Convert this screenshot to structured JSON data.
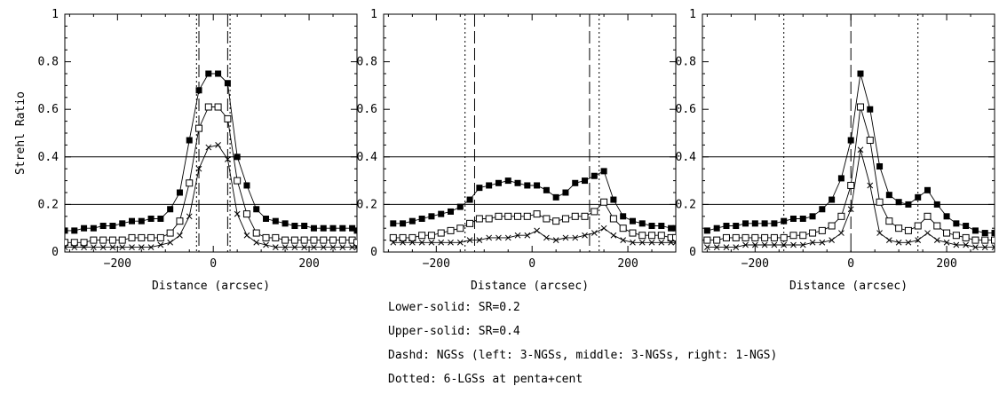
{
  "chart_data": [
    {
      "type": "line",
      "title": "",
      "xlabel": "Distance (arcsec)",
      "ylabel": "Strehl Ratio",
      "xlim": [
        -310,
        300
      ],
      "ylim": [
        0,
        1
      ],
      "xticks": [
        -200,
        0,
        200
      ],
      "yticks": [
        0,
        0.2,
        0.4,
        0.6,
        0.8,
        1
      ],
      "ytick_labels": [
        "0",
        "0.2",
        "0.4",
        "0.6",
        "0.8",
        "1"
      ],
      "hlines": [
        0.2,
        0.4
      ],
      "dashed_vlines": [
        -30,
        30
      ],
      "dotted_vlines": [
        -35,
        35
      ],
      "x": [
        -310,
        -290,
        -270,
        -250,
        -230,
        -210,
        -190,
        -170,
        -150,
        -130,
        -110,
        -90,
        -70,
        -50,
        -30,
        -10,
        10,
        30,
        50,
        70,
        90,
        110,
        130,
        150,
        170,
        190,
        210,
        230,
        250,
        270,
        290,
        300
      ],
      "series": [
        {
          "name": "filled squares",
          "marker": "filled-square",
          "values": [
            0.09,
            0.09,
            0.1,
            0.1,
            0.11,
            0.11,
            0.12,
            0.13,
            0.13,
            0.14,
            0.14,
            0.18,
            0.25,
            0.47,
            0.68,
            0.75,
            0.75,
            0.71,
            0.4,
            0.28,
            0.18,
            0.14,
            0.13,
            0.12,
            0.11,
            0.11,
            0.1,
            0.1,
            0.1,
            0.1,
            0.1,
            0.09
          ]
        },
        {
          "name": "open squares",
          "marker": "open-square",
          "values": [
            0.04,
            0.04,
            0.04,
            0.05,
            0.05,
            0.05,
            0.05,
            0.06,
            0.06,
            0.06,
            0.06,
            0.08,
            0.13,
            0.29,
            0.52,
            0.61,
            0.61,
            0.56,
            0.3,
            0.16,
            0.08,
            0.06,
            0.06,
            0.05,
            0.05,
            0.05,
            0.05,
            0.05,
            0.05,
            0.05,
            0.05,
            0.04
          ]
        },
        {
          "name": "crosses",
          "marker": "cross",
          "values": [
            0.02,
            0.02,
            0.02,
            0.02,
            0.02,
            0.02,
            0.02,
            0.02,
            0.02,
            0.02,
            0.03,
            0.04,
            0.07,
            0.15,
            0.35,
            0.44,
            0.45,
            0.39,
            0.16,
            0.07,
            0.04,
            0.03,
            0.02,
            0.02,
            0.02,
            0.02,
            0.02,
            0.02,
            0.02,
            0.02,
            0.02,
            0.02
          ]
        }
      ]
    },
    {
      "type": "line",
      "title": "",
      "xlabel": "Distance (arcsec)",
      "ylabel": "",
      "xlim": [
        -310,
        300
      ],
      "ylim": [
        0,
        1
      ],
      "xticks": [
        -200,
        0,
        200
      ],
      "yticks": [
        0,
        0.2,
        0.4,
        0.6,
        0.8,
        1
      ],
      "ytick_labels": [
        "0",
        "0.2",
        "0.4",
        "0.6",
        "0.8",
        "1"
      ],
      "hlines": [
        0.2,
        0.4
      ],
      "dashed_vlines": [
        -120,
        120
      ],
      "dotted_vlines": [
        -140,
        140
      ],
      "x": [
        -290,
        -270,
        -250,
        -230,
        -210,
        -190,
        -170,
        -150,
        -130,
        -110,
        -90,
        -70,
        -50,
        -30,
        -10,
        10,
        30,
        50,
        70,
        90,
        110,
        130,
        150,
        170,
        190,
        210,
        230,
        250,
        270,
        290,
        300
      ],
      "series": [
        {
          "name": "filled squares",
          "marker": "filled-square",
          "values": [
            0.12,
            0.12,
            0.13,
            0.14,
            0.15,
            0.16,
            0.17,
            0.19,
            0.22,
            0.27,
            0.28,
            0.29,
            0.3,
            0.29,
            0.28,
            0.28,
            0.26,
            0.23,
            0.25,
            0.29,
            0.3,
            0.32,
            0.34,
            0.22,
            0.15,
            0.13,
            0.12,
            0.11,
            0.11,
            0.1,
            0.1
          ]
        },
        {
          "name": "open squares",
          "marker": "open-square",
          "values": [
            0.06,
            0.06,
            0.06,
            0.07,
            0.07,
            0.08,
            0.09,
            0.1,
            0.12,
            0.14,
            0.14,
            0.15,
            0.15,
            0.15,
            0.15,
            0.16,
            0.14,
            0.13,
            0.14,
            0.15,
            0.15,
            0.17,
            0.21,
            0.14,
            0.1,
            0.08,
            0.07,
            0.07,
            0.07,
            0.06,
            0.06
          ]
        },
        {
          "name": "crosses",
          "marker": "cross",
          "values": [
            0.04,
            0.04,
            0.04,
            0.04,
            0.04,
            0.04,
            0.04,
            0.04,
            0.05,
            0.05,
            0.06,
            0.06,
            0.06,
            0.07,
            0.07,
            0.09,
            0.06,
            0.05,
            0.06,
            0.06,
            0.07,
            0.08,
            0.1,
            0.07,
            0.05,
            0.04,
            0.04,
            0.04,
            0.04,
            0.04,
            0.04
          ]
        }
      ]
    },
    {
      "type": "line",
      "title": "",
      "xlabel": "Distance (arcsec)",
      "ylabel": "",
      "xlim": [
        -310,
        300
      ],
      "ylim": [
        0,
        1
      ],
      "xticks": [
        -200,
        0,
        200
      ],
      "yticks": [
        0,
        0.2,
        0.4,
        0.6,
        0.8,
        1
      ],
      "ytick_labels": [
        "0",
        "0.2",
        "0.4",
        "0.6",
        "0.8",
        "1"
      ],
      "hlines": [
        0.2,
        0.4
      ],
      "dashed_vlines": [
        0
      ],
      "dotted_vlines": [
        -140,
        140
      ],
      "x": [
        -300,
        -280,
        -260,
        -240,
        -220,
        -200,
        -180,
        -160,
        -140,
        -120,
        -100,
        -80,
        -60,
        -40,
        -20,
        0,
        20,
        40,
        60,
        80,
        100,
        120,
        140,
        160,
        180,
        200,
        220,
        240,
        260,
        280,
        300
      ],
      "series": [
        {
          "name": "filled squares",
          "marker": "filled-square",
          "values": [
            0.09,
            0.1,
            0.11,
            0.11,
            0.12,
            0.12,
            0.12,
            0.12,
            0.13,
            0.14,
            0.14,
            0.15,
            0.18,
            0.22,
            0.31,
            0.47,
            0.75,
            0.6,
            0.36,
            0.24,
            0.21,
            0.2,
            0.23,
            0.26,
            0.2,
            0.15,
            0.12,
            0.11,
            0.09,
            0.08,
            0.08
          ]
        },
        {
          "name": "open squares",
          "marker": "open-square",
          "values": [
            0.05,
            0.05,
            0.06,
            0.06,
            0.06,
            0.06,
            0.06,
            0.06,
            0.06,
            0.07,
            0.07,
            0.08,
            0.09,
            0.11,
            0.15,
            0.28,
            0.61,
            0.47,
            0.21,
            0.13,
            0.1,
            0.09,
            0.11,
            0.15,
            0.11,
            0.08,
            0.07,
            0.06,
            0.05,
            0.05,
            0.05
          ]
        },
        {
          "name": "crosses",
          "marker": "cross",
          "values": [
            0.02,
            0.02,
            0.02,
            0.02,
            0.03,
            0.03,
            0.03,
            0.03,
            0.03,
            0.03,
            0.03,
            0.04,
            0.04,
            0.05,
            0.08,
            0.18,
            0.43,
            0.28,
            0.08,
            0.05,
            0.04,
            0.04,
            0.05,
            0.08,
            0.05,
            0.04,
            0.03,
            0.03,
            0.02,
            0.02,
            0.02
          ]
        }
      ]
    }
  ],
  "legend": {
    "line1": "Lower-solid: SR=0.2",
    "line2": "Upper-solid: SR=0.4",
    "line3": "Dashd: NGSs (left: 3-NGSs, middle: 3-NGSs, right: 1-NGS)",
    "line4": "Dotted: 6-LGSs at penta+cent"
  }
}
